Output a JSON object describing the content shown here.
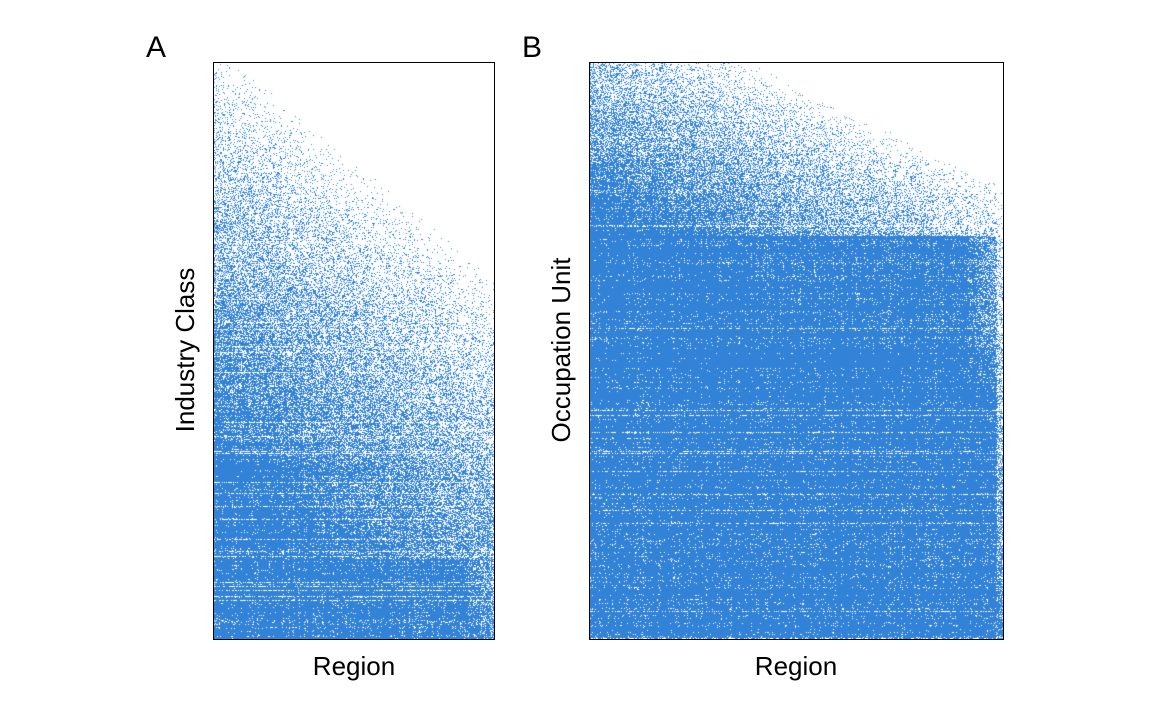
{
  "chart_data": [
    {
      "panel": "A",
      "type": "heatmap",
      "xlabel": "Region",
      "ylabel": "Industry Class",
      "color": "#3282d8",
      "description_encoding": "binary presence matrix, rows sorted by ubiquity, columns sorted by diversity",
      "grid": false,
      "legend": "none"
    },
    {
      "panel": "B",
      "type": "heatmap",
      "xlabel": "Region",
      "ylabel": "Occupation Unit",
      "color": "#3282d8",
      "grid": false,
      "legend": "none"
    }
  ]
}
